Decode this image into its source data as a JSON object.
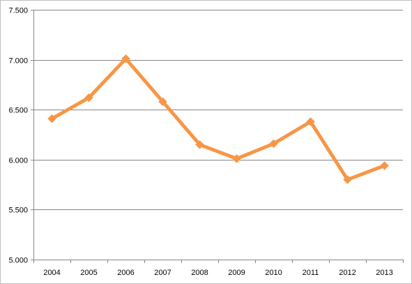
{
  "chart_data": {
    "type": "line",
    "title": "",
    "xlabel": "",
    "ylabel": "",
    "categories": [
      "2004",
      "2005",
      "2006",
      "2007",
      "2008",
      "2009",
      "2010",
      "2011",
      "2012",
      "2013"
    ],
    "series": [
      {
        "values": [
          6.41,
          6.62,
          7.01,
          6.58,
          6.15,
          6.01,
          6.16,
          6.38,
          5.8,
          5.94
        ],
        "color": "#f79646",
        "marker": "diamond"
      }
    ],
    "ylim": [
      5.0,
      7.5
    ],
    "yticks": [
      5.0,
      5.5,
      6.0,
      6.5,
      7.0,
      7.5
    ],
    "ytick_labels": [
      "5.000",
      "5.500",
      "6.000",
      "6.500",
      "7.000",
      "7.500"
    ],
    "grid": "horizontal",
    "legend": "none",
    "colors": {
      "gridline": "#868686",
      "axis": "#868686",
      "frame_border": "#bfbfbf"
    }
  }
}
